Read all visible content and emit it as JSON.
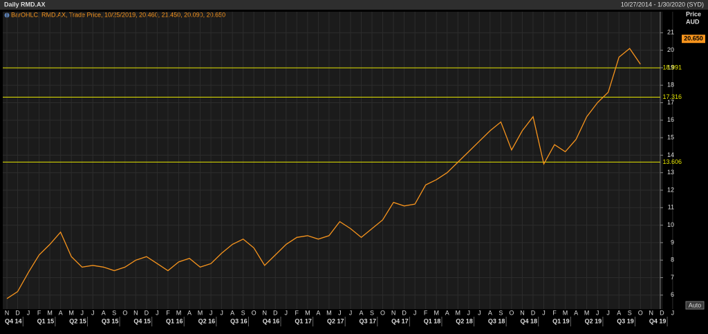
{
  "chart_data": {
    "type": "line",
    "title": "Daily RMD.AX",
    "date_range": "10/27/2014 - 1/30/2020 (SYD)",
    "y_label": "Price",
    "y_unit": "AUD",
    "button": "Auto",
    "categories": [
      "N",
      "D",
      "J",
      "F",
      "M",
      "A",
      "M",
      "J",
      "J",
      "A",
      "S",
      "O",
      "N",
      "D",
      "J",
      "F",
      "M",
      "A",
      "M",
      "J",
      "J",
      "A",
      "S",
      "O",
      "N",
      "D",
      "J",
      "F",
      "M",
      "A",
      "M",
      "J",
      "J",
      "A",
      "S",
      "O",
      "N",
      "D",
      "J",
      "F",
      "M",
      "A",
      "M",
      "J",
      "J",
      "A",
      "S",
      "O",
      "N",
      "D",
      "J",
      "F",
      "M",
      "A",
      "M",
      "J",
      "J",
      "A",
      "S",
      "O",
      "N",
      "D",
      "J"
    ],
    "quarters": [
      "Q4 14",
      "Q1 15",
      "Q2 15",
      "Q3 15",
      "Q4 15",
      "Q1 16",
      "Q2 16",
      "Q3 16",
      "Q4 16",
      "Q1 17",
      "Q2 17",
      "Q3 17",
      "Q4 17",
      "Q1 18",
      "Q2 18",
      "Q3 18",
      "Q4 18",
      "Q1 19",
      "Q2 19",
      "Q3 19",
      "Q4 19"
    ],
    "series": [
      {
        "name": "BarOHLC, RMD.AX, Trade Price, 10/25/2019, 20.460, 21.450, 20.090, 20.650",
        "color": "#f7941d",
        "values": [
          5.8,
          6.2,
          7.3,
          8.3,
          8.9,
          9.6,
          8.2,
          7.6,
          7.7,
          7.6,
          7.4,
          7.6,
          8.0,
          8.2,
          7.8,
          7.4,
          7.9,
          8.1,
          7.6,
          7.8,
          8.4,
          8.9,
          9.2,
          8.7,
          7.7,
          8.3,
          8.9,
          9.3,
          9.4,
          9.2,
          9.4,
          10.2,
          9.8,
          9.3,
          9.8,
          10.3,
          11.3,
          11.1,
          11.2,
          12.3,
          12.6,
          13.0,
          13.6,
          14.2,
          14.8,
          15.4,
          15.9,
          14.3,
          15.4,
          16.2,
          13.5,
          14.6,
          14.2,
          14.9,
          16.2,
          17.0,
          17.6,
          19.6,
          20.1,
          19.2,
          null,
          null,
          null
        ]
      }
    ],
    "current_price": {
      "value": 20.65,
      "label": "20.650"
    },
    "levels": [
      18.991,
      17.316,
      13.606
    ],
    "level_color": "#e6e600",
    "ylim": [
      5.2,
      22.2
    ],
    "yticks": [
      6,
      7,
      8,
      9,
      10,
      11,
      12,
      13,
      14,
      15,
      16,
      17,
      18,
      19,
      20,
      21
    ],
    "grid": true
  }
}
